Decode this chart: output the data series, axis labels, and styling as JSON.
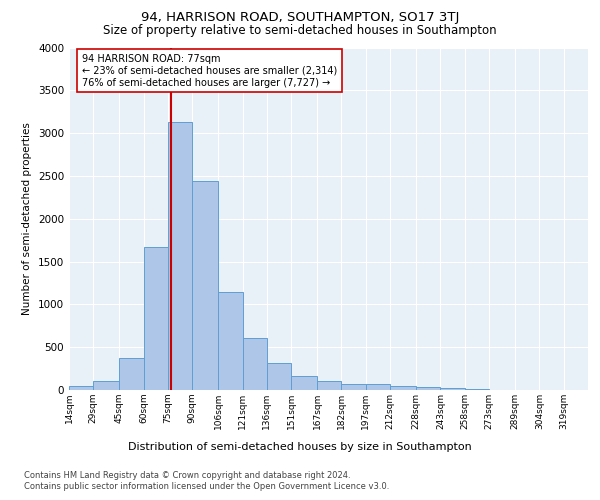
{
  "title": "94, HARRISON ROAD, SOUTHAMPTON, SO17 3TJ",
  "subtitle": "Size of property relative to semi-detached houses in Southampton",
  "xlabel": "Distribution of semi-detached houses by size in Southampton",
  "ylabel": "Number of semi-detached properties",
  "footnote1": "Contains HM Land Registry data © Crown copyright and database right 2024.",
  "footnote2": "Contains public sector information licensed under the Open Government Licence v3.0.",
  "property_label": "94 HARRISON ROAD: 77sqm",
  "smaller_pct": "23% of semi-detached houses are smaller (2,314)",
  "larger_pct": "76% of semi-detached houses are larger (7,727)",
  "property_size": 77,
  "bar_left_edges": [
    14,
    29,
    45,
    60,
    75,
    90,
    106,
    121,
    136,
    151,
    167,
    182,
    197,
    212,
    228,
    243,
    258,
    273,
    289,
    304
  ],
  "bar_widths": [
    15,
    16,
    15,
    15,
    15,
    16,
    15,
    15,
    15,
    16,
    15,
    15,
    15,
    16,
    15,
    15,
    15,
    16,
    15,
    15
  ],
  "bar_heights": [
    50,
    100,
    370,
    1670,
    3130,
    2440,
    1150,
    610,
    310,
    160,
    100,
    65,
    65,
    45,
    35,
    20,
    10,
    5,
    3,
    2
  ],
  "bar_color": "#aec6e8",
  "bar_edge_color": "#5f9fd4",
  "bg_color": "#e8f0f8",
  "red_line_color": "#cc0000",
  "annotation_box_color": "#ffffff",
  "annotation_box_edge": "#cc0000",
  "ylim": [
    0,
    4000
  ],
  "yticks": [
    0,
    500,
    1000,
    1500,
    2000,
    2500,
    3000,
    3500,
    4000
  ],
  "tick_labels": [
    "14sqm",
    "29sqm",
    "45sqm",
    "60sqm",
    "75sqm",
    "90sqm",
    "106sqm",
    "121sqm",
    "136sqm",
    "151sqm",
    "167sqm",
    "182sqm",
    "197sqm",
    "212sqm",
    "228sqm",
    "243sqm",
    "258sqm",
    "273sqm",
    "289sqm",
    "304sqm",
    "319sqm"
  ],
  "title_fontsize": 9.5,
  "subtitle_fontsize": 8.5,
  "ylabel_fontsize": 7.5,
  "xlabel_fontsize": 8,
  "footnote_fontsize": 6,
  "annot_fontsize": 7,
  "ytick_fontsize": 7.5,
  "xtick_fontsize": 6.5
}
